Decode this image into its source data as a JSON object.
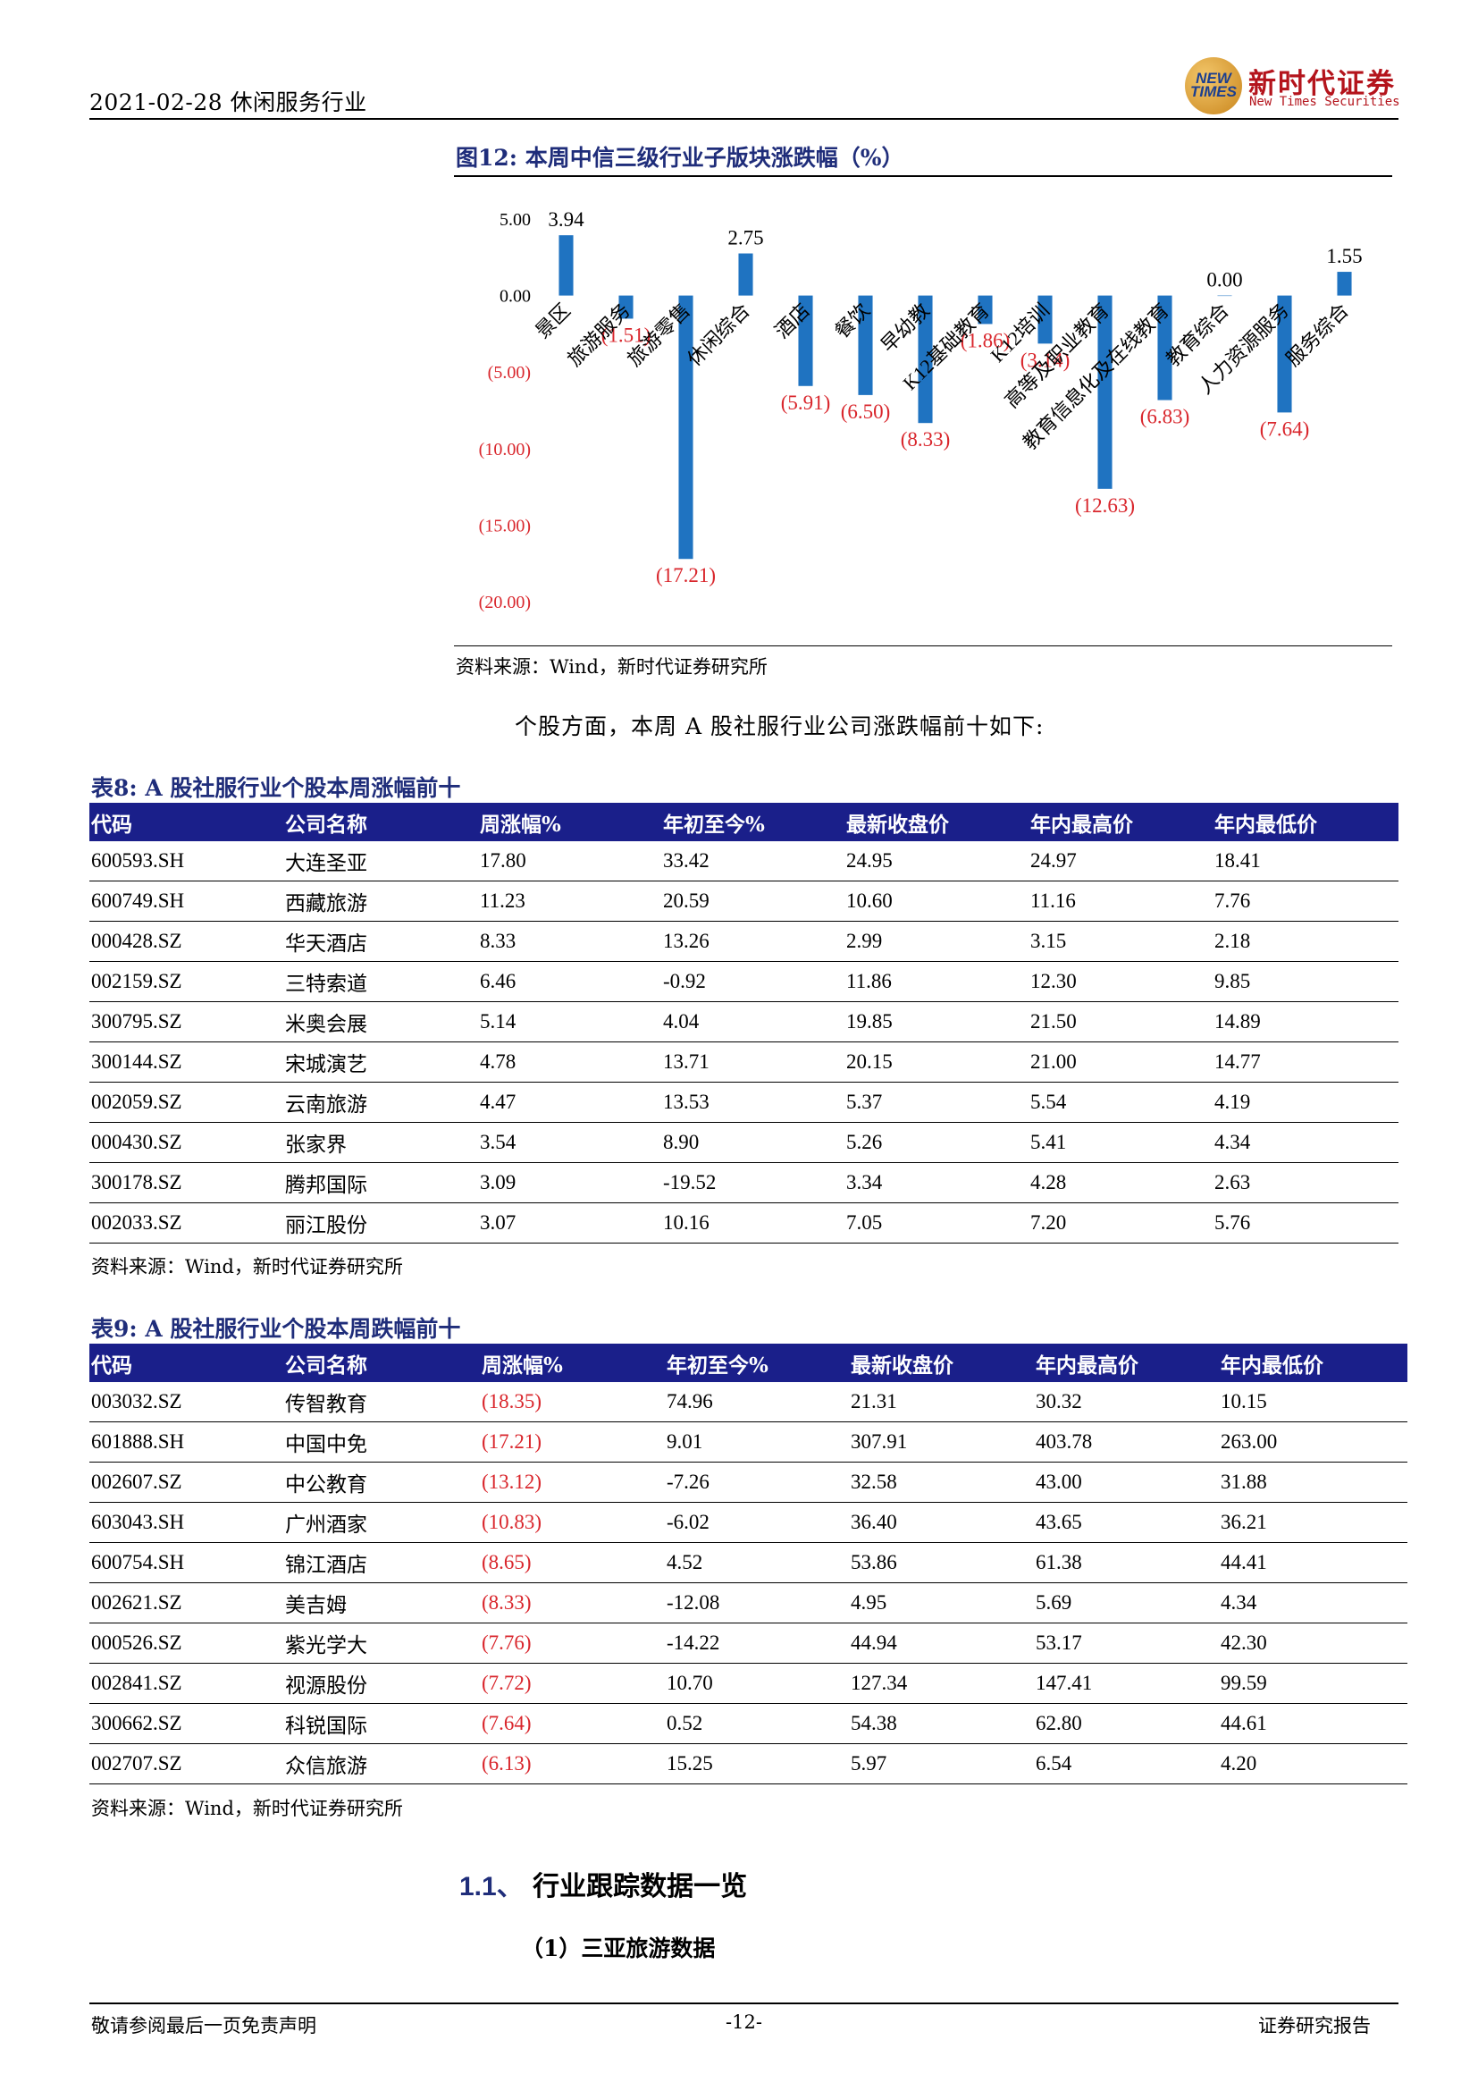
{
  "header": {
    "date_topic": "2021-02-28 休闲服务行业",
    "logo_mark": "NEW TIMES",
    "logo_cn": "新时代证券",
    "logo_en": "New Times Securities"
  },
  "figure12": {
    "title": "图12:  本周中信三级行业子版块涨跌幅（%）",
    "source": "资料来源：Wind，新时代证券研究所"
  },
  "chart_data": {
    "type": "bar",
    "title": "本周中信三级行业子版块涨跌幅（%）",
    "categories": [
      "景区",
      "旅游服务",
      "旅游零售",
      "休闲综合",
      "酒店",
      "餐饮",
      "早幼教",
      "K12基础教育",
      "K12培训",
      "高等及职业教育",
      "教育信息化及在线教育",
      "教育综合",
      "人力资源服务",
      "服务综合"
    ],
    "values": [
      3.94,
      -1.51,
      -17.21,
      2.75,
      -5.91,
      -6.5,
      -8.33,
      -1.86,
      -3.14,
      -12.63,
      -6.83,
      0.0,
      -7.64,
      1.55
    ],
    "data_labels": [
      "3.94",
      "(1.51)",
      "(17.21)",
      "2.75",
      "(5.91)",
      "(6.50)",
      "(8.33)",
      "(1.86)",
      "(3.14)",
      "(12.63)",
      "(6.83)",
      "0.00",
      "(7.64)",
      "1.55"
    ],
    "y_ticks": [
      "5.00",
      "0.00",
      "(5.00)",
      "(10.00)",
      "(15.00)",
      "(20.00)"
    ],
    "ylim": [
      -20,
      5
    ],
    "bar_color": "#1f73c1",
    "negative_color": "#d9262c",
    "grid": false
  },
  "intro_text": "个股方面，本周 A 股社服行业公司涨跌幅前十如下:",
  "table8": {
    "title": "表8:  A 股社服行业个股本周涨幅前十",
    "headers": [
      "代码",
      "公司名称",
      "周涨幅%",
      "年初至今%",
      "最新收盘价",
      "年内最高价",
      "年内最低价"
    ],
    "rows": [
      [
        "600593.SH",
        "大连圣亚",
        "17.80",
        "33.42",
        "24.95",
        "24.97",
        "18.41"
      ],
      [
        "600749.SH",
        "西藏旅游",
        "11.23",
        "20.59",
        "10.60",
        "11.16",
        "7.76"
      ],
      [
        "000428.SZ",
        "华天酒店",
        "8.33",
        "13.26",
        "2.99",
        "3.15",
        "2.18"
      ],
      [
        "002159.SZ",
        "三特索道",
        "6.46",
        "-0.92",
        "11.86",
        "12.30",
        "9.85"
      ],
      [
        "300795.SZ",
        "米奥会展",
        "5.14",
        "4.04",
        "19.85",
        "21.50",
        "14.89"
      ],
      [
        "300144.SZ",
        "宋城演艺",
        "4.78",
        "13.71",
        "20.15",
        "21.00",
        "14.77"
      ],
      [
        "002059.SZ",
        "云南旅游",
        "4.47",
        "13.53",
        "5.37",
        "5.54",
        "4.19"
      ],
      [
        "000430.SZ",
        "张家界",
        "3.54",
        "8.90",
        "5.26",
        "5.41",
        "4.34"
      ],
      [
        "300178.SZ",
        "腾邦国际",
        "3.09",
        "-19.52",
        "3.34",
        "4.28",
        "2.63"
      ],
      [
        "002033.SZ",
        "丽江股份",
        "3.07",
        "10.16",
        "7.05",
        "7.20",
        "5.76"
      ]
    ],
    "source": "资料来源：Wind，新时代证券研究所"
  },
  "table9": {
    "title": "表9:  A 股社服行业个股本周跌幅前十",
    "headers": [
      "代码",
      "公司名称",
      "周涨幅%",
      "年初至今%",
      "最新收盘价",
      "年内最高价",
      "年内最低价"
    ],
    "rows": [
      [
        "003032.SZ",
        "传智教育",
        "(18.35)",
        "74.96",
        "21.31",
        "30.32",
        "10.15"
      ],
      [
        "601888.SH",
        "中国中免",
        "(17.21)",
        "9.01",
        "307.91",
        "403.78",
        "263.00"
      ],
      [
        "002607.SZ",
        "中公教育",
        "(13.12)",
        "-7.26",
        "32.58",
        "43.00",
        "31.88"
      ],
      [
        "603043.SH",
        "广州酒家",
        "(10.83)",
        "-6.02",
        "36.40",
        "43.65",
        "36.21"
      ],
      [
        "600754.SH",
        "锦江酒店",
        "(8.65)",
        "4.52",
        "53.86",
        "61.38",
        "44.41"
      ],
      [
        "002621.SZ",
        "美吉姆",
        "(8.33)",
        "-12.08",
        "4.95",
        "5.69",
        "4.34"
      ],
      [
        "000526.SZ",
        "紫光学大",
        "(7.76)",
        "-14.22",
        "44.94",
        "53.17",
        "42.30"
      ],
      [
        "002841.SZ",
        "视源股份",
        "(7.72)",
        "10.70",
        "127.34",
        "147.41",
        "99.59"
      ],
      [
        "300662.SZ",
        "科锐国际",
        "(7.64)",
        "0.52",
        "54.38",
        "62.80",
        "44.61"
      ],
      [
        "002707.SZ",
        "众信旅游",
        "(6.13)",
        "15.25",
        "5.97",
        "6.54",
        "4.20"
      ]
    ],
    "source": "资料来源：Wind，新时代证券研究所"
  },
  "section": {
    "number": "1.1、",
    "title": "行业跟踪数据一览"
  },
  "subsection": "（1）三亚旅游数据",
  "footer": {
    "left": "敬请参阅最后一页免责声明",
    "page": "-12-",
    "right": "证券研究报告"
  }
}
